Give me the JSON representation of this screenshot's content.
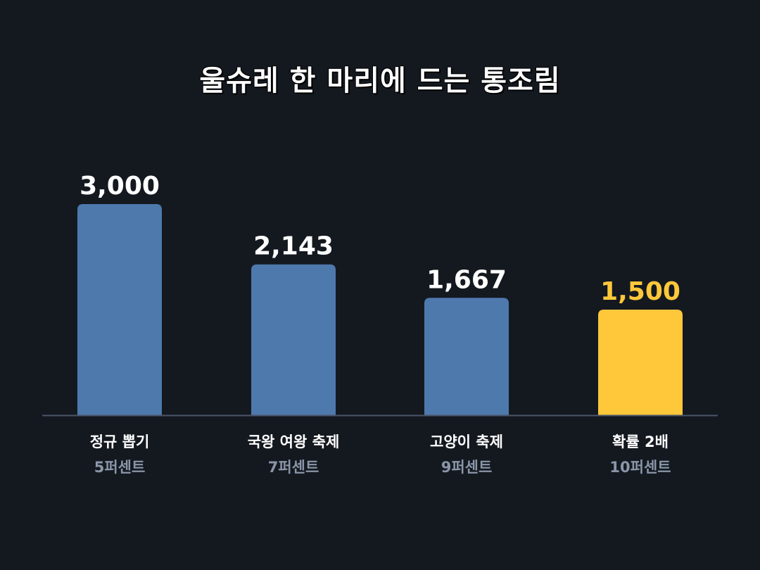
{
  "chart_data": {
    "type": "bar",
    "title": "울슈레 한 마리에 드는 통조림",
    "categories": [
      "정규 뽑기",
      "국왕 여왕 축제",
      "고양이 축제",
      "확률 2배"
    ],
    "subcategories": [
      "5퍼센트",
      "7퍼센트",
      "9퍼센트",
      "10퍼센트"
    ],
    "values": [
      3000,
      2143,
      1667,
      1500
    ],
    "value_labels": [
      "3,000",
      "2,143",
      "1,667",
      "1,500"
    ],
    "highlight_index": 3,
    "ylim": [
      0,
      3000
    ],
    "grid": false,
    "colors": {
      "bar": "#4e79ad",
      "highlight": "#ffc83a",
      "value_text": "#ffffff",
      "highlight_text": "#ffc83a",
      "baseline": "#4a5568",
      "background": "#141920"
    }
  }
}
